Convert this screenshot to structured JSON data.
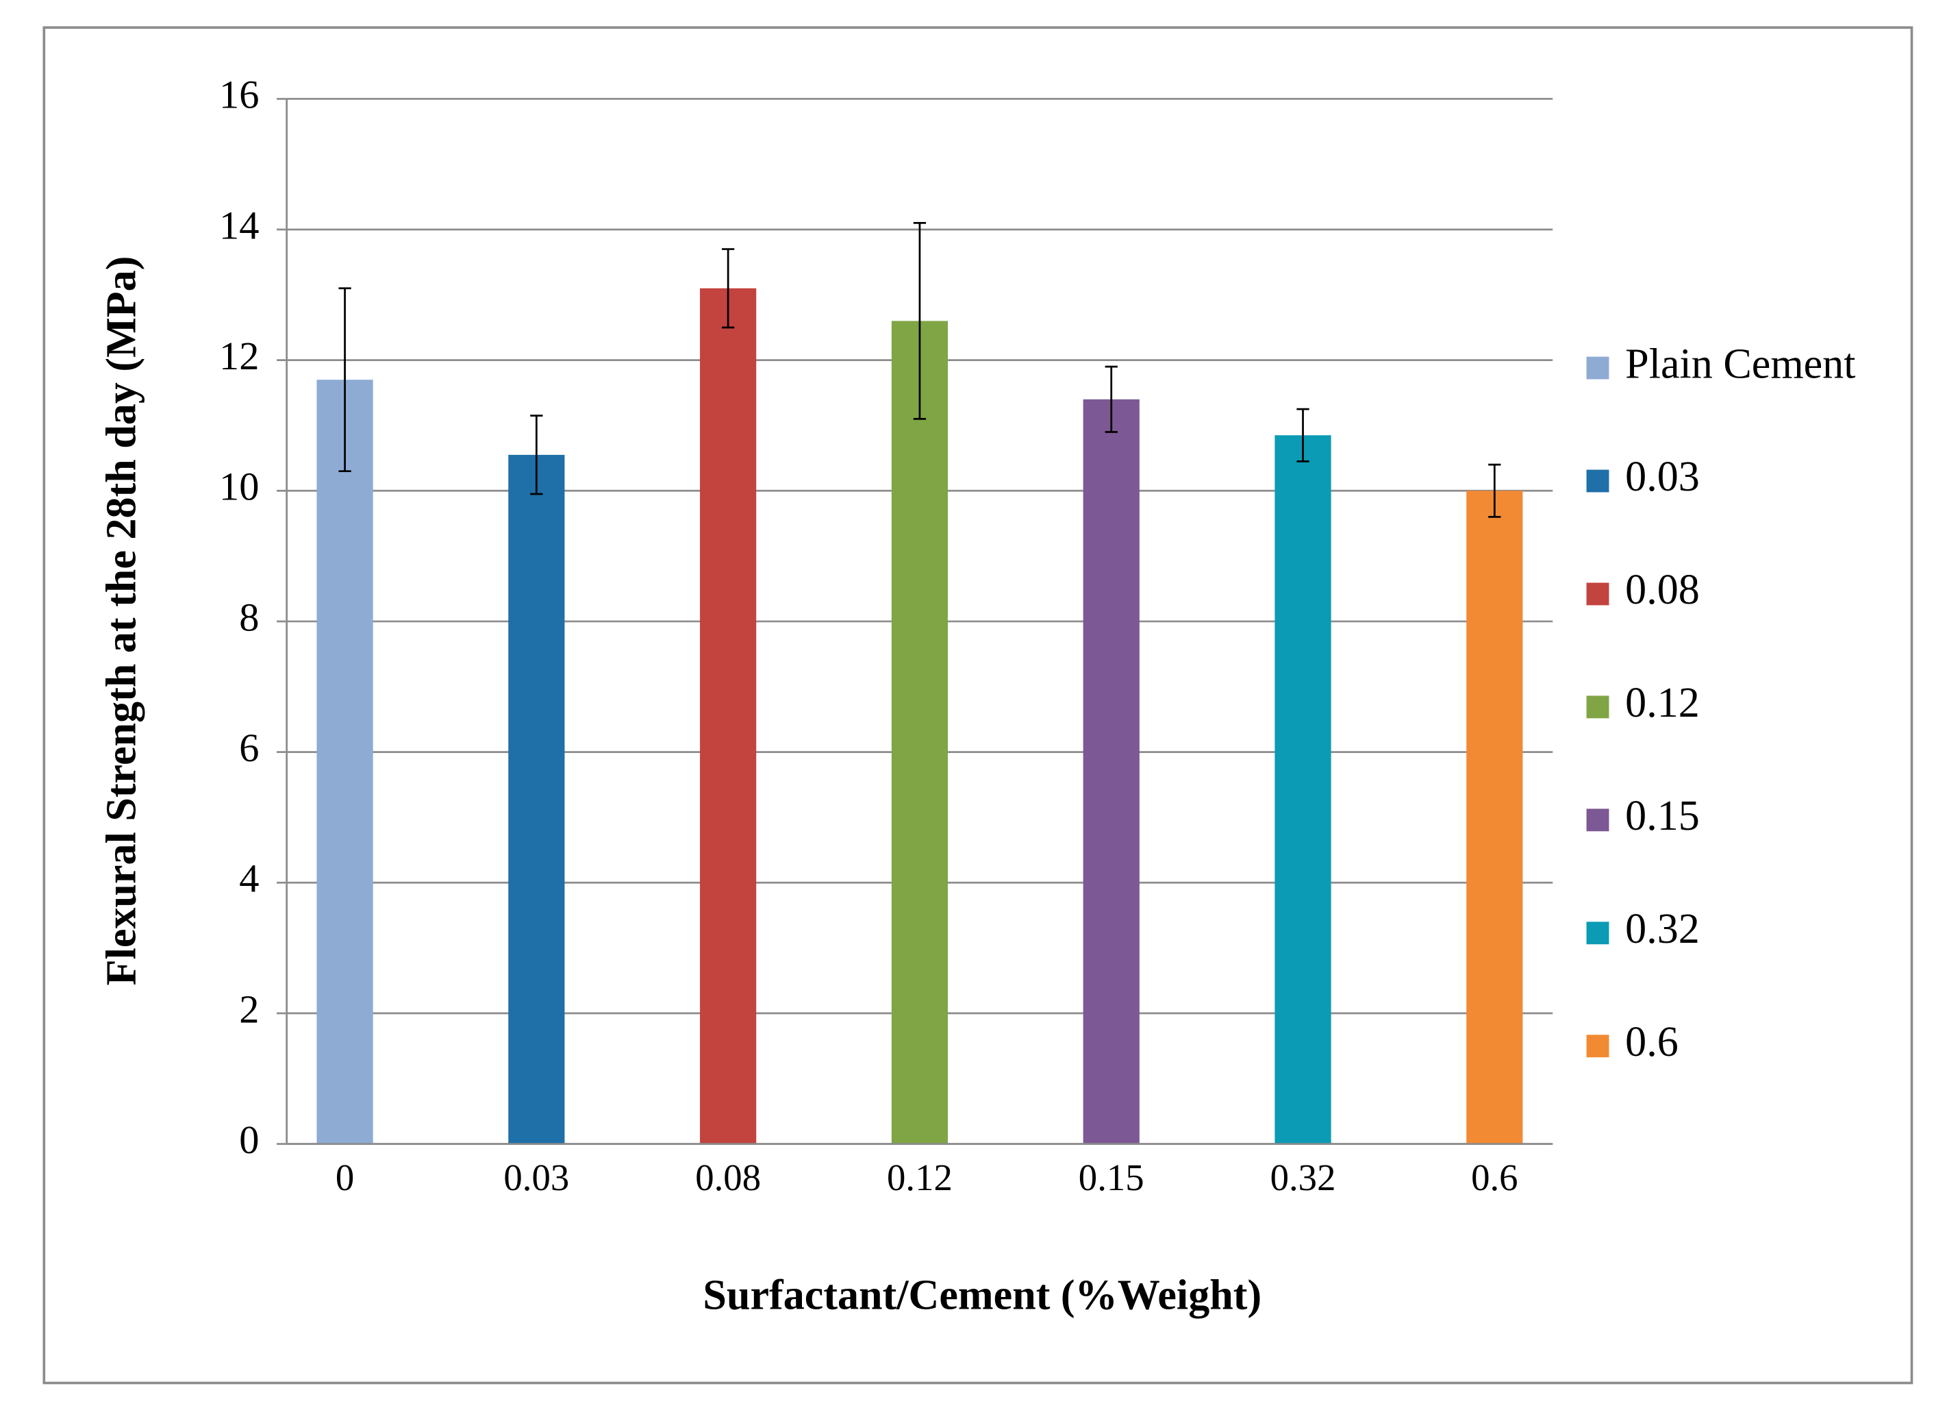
{
  "chart_data": {
    "type": "bar",
    "xlabel": "Surfactant/Cement (%Weight)",
    "ylabel": "Flexural Strength at the 28th day (MPa)",
    "categories": [
      "0",
      "0.03",
      "0.08",
      "0.12",
      "0.15",
      "0.32",
      "0.6"
    ],
    "series": [
      {
        "name": "Plain Cement",
        "color": "#8eabd4",
        "values": [
          11.7,
          null,
          null,
          null,
          null,
          null,
          null
        ],
        "errors": [
          1.4,
          null,
          null,
          null,
          null,
          null,
          null
        ]
      },
      {
        "name": "0.03",
        "color": "#1f6fa8",
        "values": [
          null,
          10.55,
          null,
          null,
          null,
          null,
          null
        ],
        "errors": [
          null,
          0.6,
          null,
          null,
          null,
          null,
          null
        ]
      },
      {
        "name": "0.08",
        "color": "#c3433f",
        "values": [
          null,
          null,
          13.1,
          null,
          null,
          null,
          null
        ],
        "errors": [
          null,
          null,
          0.6,
          null,
          null,
          null,
          null
        ]
      },
      {
        "name": "0.12",
        "color": "#7fa545",
        "values": [
          null,
          null,
          null,
          12.6,
          null,
          null,
          null
        ],
        "errors": [
          null,
          null,
          null,
          1.5,
          null,
          null,
          null
        ]
      },
      {
        "name": "0.15",
        "color": "#7c5894",
        "values": [
          null,
          null,
          null,
          null,
          11.4,
          null,
          null
        ],
        "errors": [
          null,
          null,
          null,
          null,
          0.5,
          null,
          null
        ]
      },
      {
        "name": "0.32",
        "color": "#0b9bb5",
        "values": [
          null,
          null,
          null,
          null,
          null,
          10.85,
          null
        ],
        "errors": [
          null,
          null,
          null,
          null,
          null,
          0.4,
          null
        ]
      },
      {
        "name": "0.6",
        "color": "#f28a33",
        "values": [
          null,
          null,
          null,
          null,
          null,
          null,
          10.0
        ],
        "errors": [
          null,
          null,
          null,
          null,
          null,
          null,
          0.4
        ]
      }
    ],
    "ylim": [
      0,
      16
    ],
    "yticks": [
      0,
      2,
      4,
      6,
      8,
      10,
      12,
      14,
      16
    ],
    "grid": true,
    "legend": "right"
  }
}
